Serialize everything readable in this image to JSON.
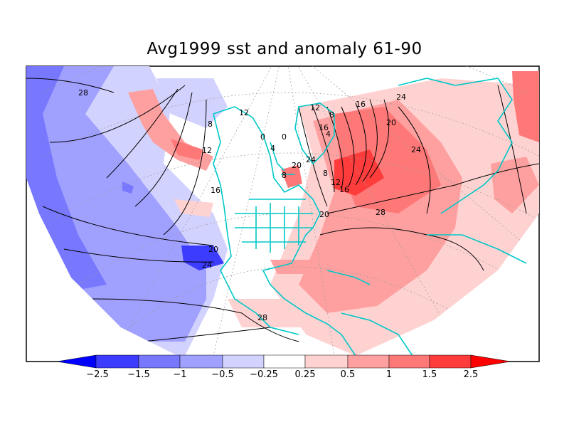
{
  "title": "Avg1999 sst and anomaly 61-90",
  "legend": {
    "colors": [
      "#0000ff",
      "#3c3cff",
      "#7878ff",
      "#a0a0ff",
      "#d2d2ff",
      "#ffffff",
      "#ffd2d2",
      "#ffa0a0",
      "#ff7878",
      "#ff3c3c",
      "#ff0000"
    ],
    "ticks": [
      "−2.5",
      "−1.5",
      "−1",
      "−0.5",
      "−0.25",
      "0.25",
      "0.5",
      "1",
      "1.5",
      "2.5"
    ]
  },
  "contour_labels": [
    "28",
    "8",
    "12",
    "16",
    "20",
    "24",
    "12",
    "16",
    "20",
    "28",
    "24",
    "20",
    "16",
    "8",
    "0",
    "12",
    "24",
    "28",
    "8",
    "4",
    "0",
    "4",
    "8",
    "12",
    "16",
    "20",
    "24"
  ],
  "colors": {
    "land_outline": "#00c8c8",
    "contour": "#000000",
    "grid": "#999999"
  }
}
